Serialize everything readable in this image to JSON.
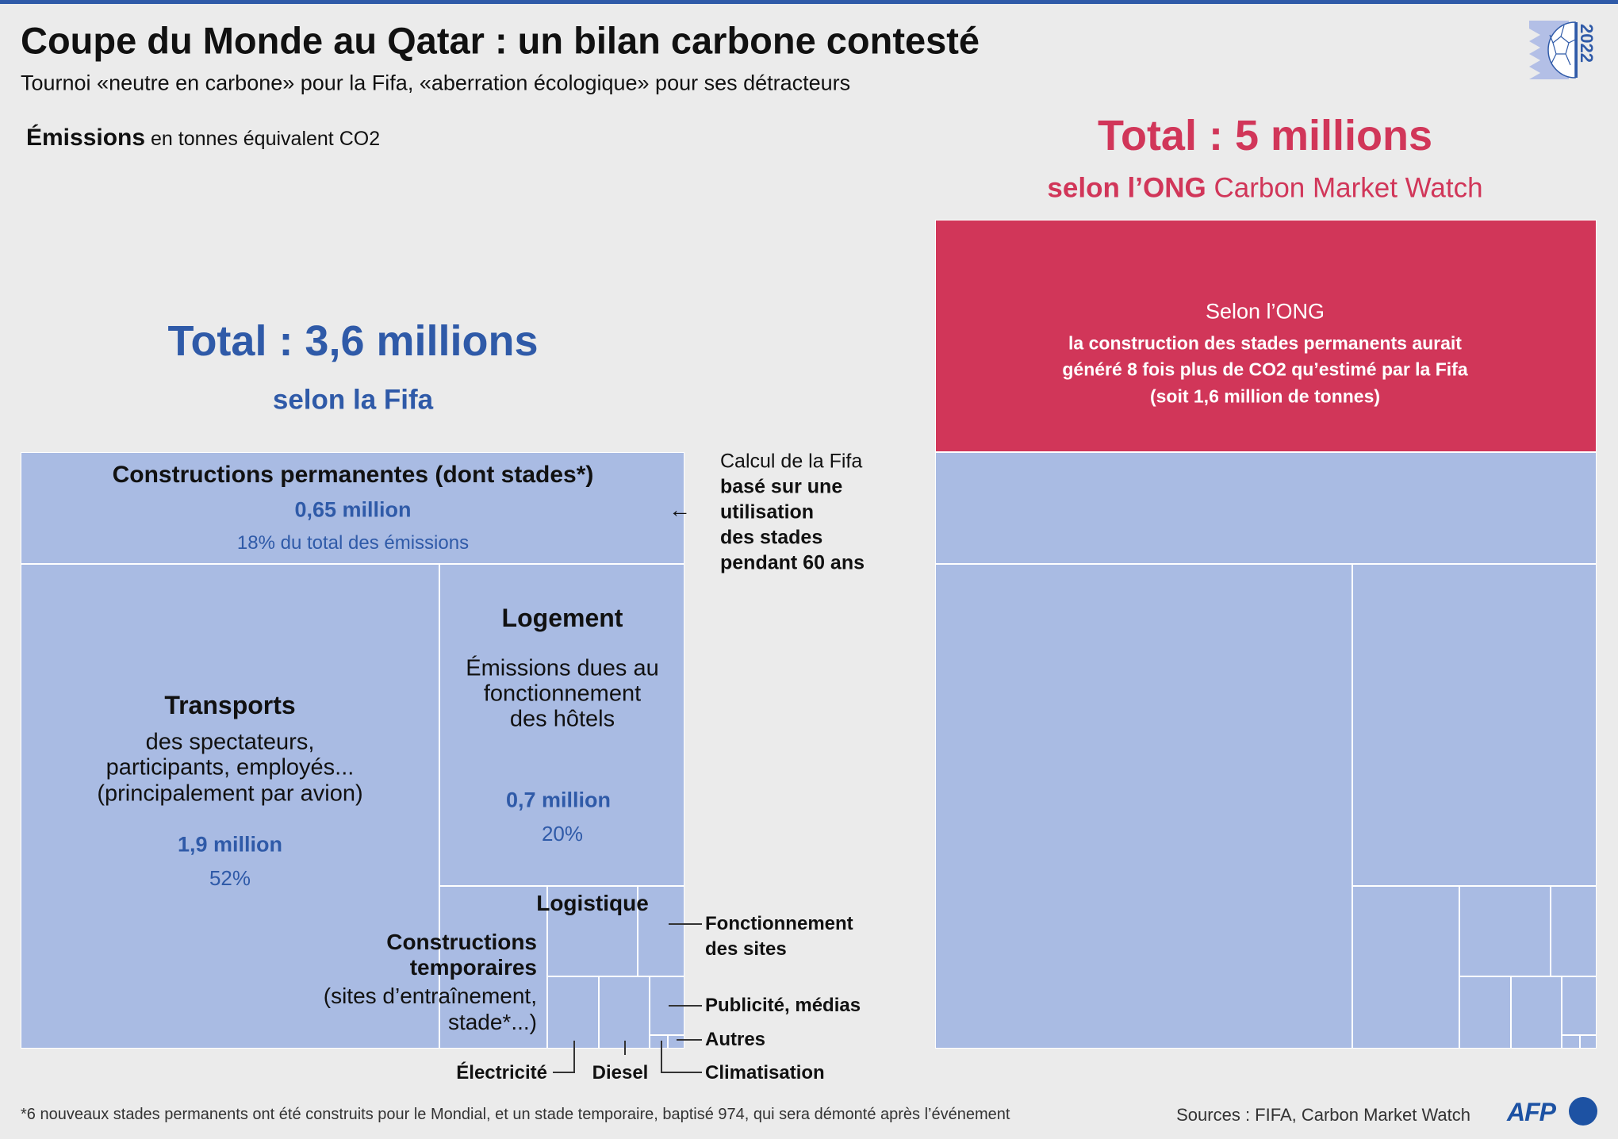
{
  "header": {
    "title": "Coupe du Monde au Qatar : un bilan carbone contesté",
    "subtitle": "Tournoi «neutre en carbone» pour la Fifa, «aberration écologique» pour ses détracteurs",
    "logo_year": "2022"
  },
  "units": {
    "bold": "Émissions",
    "rest": "en tonnes équivalent CO2"
  },
  "fifa": {
    "total": "Total : 3,6 millions",
    "source": "selon la Fifa",
    "note_line1": "Calcul de la Fifa",
    "note_bold": [
      "basé sur une",
      "utilisation",
      "des stades",
      "pendant 60 ans"
    ]
  },
  "ong": {
    "total": "Total : 5 millions",
    "source_bold": "selon l’ONG",
    "source_rest": "Carbon Market Watch",
    "box_line1": "Selon l’ONG",
    "box_bold": [
      "la construction des stades permanents aurait",
      "généré 8 fois plus de CO2 qu’estimé par la Fifa",
      "(soit 1,6 million de tonnes)"
    ]
  },
  "labels": {
    "perm_title": "Constructions permanentes (dont stades*)",
    "perm_value": "0,65 million",
    "perm_pct": "18% du total des émissions",
    "logement_title": "Logement",
    "logement_desc": [
      "Émissions dues au",
      "fonctionnement",
      "des hôtels"
    ],
    "logement_value": "0,7 million",
    "logement_pct": "20%",
    "transports_title": "Transports",
    "transports_desc": [
      "des spectateurs,",
      "participants, employés...",
      "(principalement par avion)"
    ],
    "transports_value": "1,9 million",
    "transports_pct": "52%",
    "logistique": "Logistique",
    "temp_title": [
      "Constructions",
      "temporaires"
    ],
    "temp_desc": [
      "(sites d’entraînement,",
      "stade*...)"
    ],
    "fonctionnement": [
      "Fonctionnement",
      "des sites"
    ],
    "publicite": "Publicité, médias",
    "autres": "Autres",
    "climatisation": "Climatisation",
    "diesel": "Diesel",
    "electricite": "Électricité"
  },
  "footer": {
    "footnote": "*6 nouveaux stades permanents ont été construits pour le Mondial, et un stade temporaire, baptisé 974, qui sera démonté après l’événement",
    "sources": "Sources : FIFA, Carbon Market Watch",
    "logo": "AFP"
  },
  "colors": {
    "fifa_blue": "#2f5aa8",
    "ong_red": "#d13659",
    "cell": "#a9bbe3",
    "background": "#ebebeb"
  },
  "chart_data": {
    "type": "treemap",
    "units": "tonnes équivalent CO2",
    "treemaps": [
      {
        "source": "selon la Fifa",
        "total": 3600000,
        "items": [
          {
            "name": "Constructions permanentes (dont stades*)",
            "value": 650000,
            "pct": 18
          },
          {
            "name": "Transports",
            "value": 1900000,
            "pct": 52
          },
          {
            "name": "Logement",
            "value": 700000,
            "pct": 20
          },
          {
            "name": "Constructions temporaires"
          },
          {
            "name": "Logistique"
          },
          {
            "name": "Fonctionnement des sites"
          },
          {
            "name": "Électricité"
          },
          {
            "name": "Diesel"
          },
          {
            "name": "Publicité, médias"
          },
          {
            "name": "Climatisation"
          },
          {
            "name": "Autres"
          }
        ]
      },
      {
        "source": "selon l’ONG Carbon Market Watch",
        "total": 5000000,
        "items": [
          {
            "name": "Construction des stades permanents (supplément selon l’ONG)",
            "value": 1600000
          }
        ]
      }
    ]
  }
}
